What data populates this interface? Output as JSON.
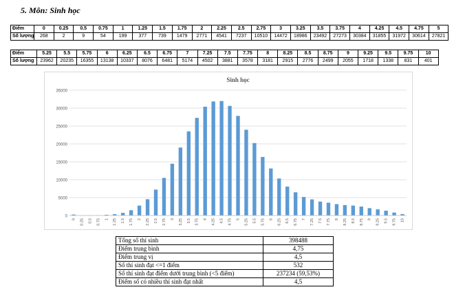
{
  "heading": "5.  Môn: Sinh học",
  "table1": {
    "row_label_score": "Điểm",
    "row_label_count": "Số lượng",
    "scores": [
      "0",
      "0.25",
      "0.5",
      "0.75",
      "1",
      "1.25",
      "1.5",
      "1.75",
      "2",
      "2.25",
      "2.5",
      "2.75",
      "3",
      "3.25",
      "3.5",
      "3.75",
      "4",
      "4.25",
      "4.5",
      "4.75",
      "5"
    ],
    "counts": [
      "268",
      "2",
      "9",
      "54",
      "199",
      "377",
      "739",
      "1479",
      "2771",
      "4541",
      "7237",
      "10510",
      "14472",
      "18986",
      "23492",
      "27273",
      "30384",
      "31855",
      "31972",
      "30614",
      "27821"
    ]
  },
  "table2": {
    "row_label_score": "Điểm",
    "row_label_count": "Số lượng",
    "scores": [
      "5.25",
      "5.5",
      "5.75",
      "6",
      "6.25",
      "6.5",
      "6.75",
      "7",
      "7.25",
      "7.5",
      "7.75",
      "8",
      "8.25",
      "8.5",
      "8.75",
      "9",
      "9.25",
      "9.5",
      "9.75",
      "10"
    ],
    "counts": [
      "23962",
      "20235",
      "16355",
      "13138",
      "10337",
      "8076",
      "6481",
      "5174",
      "4502",
      "3881",
      "3578",
      "3181",
      "2915",
      "2776",
      "2499",
      "2055",
      "1718",
      "1338",
      "831",
      "401"
    ]
  },
  "chart_data": {
    "type": "bar",
    "title": "Sinh học",
    "xlabel": "",
    "ylabel": "",
    "ylim": [
      0,
      35000
    ],
    "yticks": [
      "0",
      "5000",
      "10000",
      "15000",
      "20000",
      "25000",
      "30000",
      "35000"
    ],
    "grid": true,
    "bar_color": "#5b9bd5",
    "categories": [
      "0",
      "0.25",
      "0.5",
      "0.75",
      "1",
      "1.25",
      "1.5",
      "1.75",
      "2",
      "2.25",
      "2.5",
      "2.75",
      "3",
      "3.25",
      "3.5",
      "3.75",
      "4",
      "4.25",
      "4.5",
      "4.75",
      "5",
      "5.25",
      "5.5",
      "5.75",
      "6",
      "6.25",
      "6.5",
      "6.75",
      "7",
      "7.25",
      "7.5",
      "7.75",
      "8",
      "8.25",
      "8.5",
      "8.75",
      "9",
      "9.25",
      "9.5",
      "9.75",
      "10"
    ],
    "values": [
      268,
      2,
      9,
      54,
      199,
      377,
      739,
      1479,
      2771,
      4541,
      7237,
      10510,
      14472,
      18986,
      23492,
      27273,
      30384,
      31855,
      31972,
      30614,
      27821,
      23962,
      20235,
      16355,
      13138,
      10337,
      8076,
      6481,
      5174,
      4502,
      3881,
      3578,
      3181,
      2915,
      2776,
      2499,
      2055,
      1718,
      1338,
      831,
      401
    ]
  },
  "stats": [
    {
      "label": "Tổng số thí sinh",
      "value": "398488"
    },
    {
      "label": "Điểm trung bình",
      "value": "4,75"
    },
    {
      "label": "Điểm trung vị",
      "value": "4,5"
    },
    {
      "label": "Số thí sinh đạt <=1 điểm",
      "value": "532"
    },
    {
      "label": "Số thí sinh đạt điểm dưới trung bình (<5 điểm)",
      "value": "237234 (59,53%)"
    },
    {
      "label": "Điểm số có nhiều thí sinh đạt nhất",
      "value": "4,5"
    }
  ]
}
